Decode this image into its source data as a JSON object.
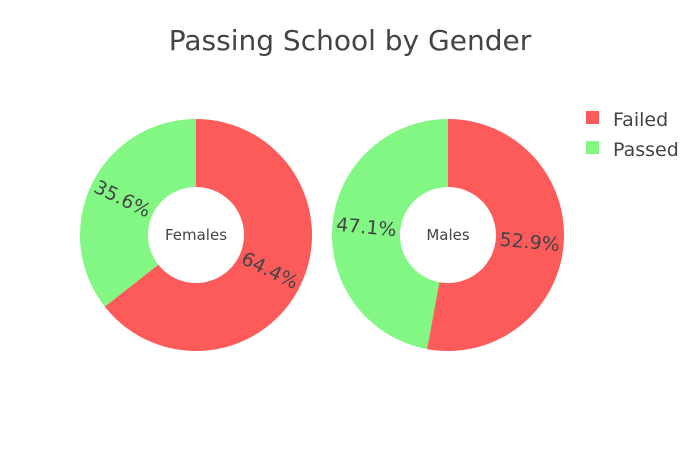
{
  "chart_data": {
    "type": "pie",
    "variant": "donut",
    "title": "Passing School by Gender",
    "legend": {
      "placement": "top-right",
      "entries": [
        {
          "name": "Failed",
          "color": "#fd5a5a"
        },
        {
          "name": "Passed",
          "color": "#83f783"
        }
      ]
    },
    "categories": [
      "Failed",
      "Passed"
    ],
    "pies": [
      {
        "name": "Females",
        "values": [
          64.4,
          35.6
        ],
        "labels": [
          "64.4%",
          "35.6%"
        ]
      },
      {
        "name": "Males",
        "values": [
          52.9,
          47.1
        ],
        "labels": [
          "52.9%",
          "47.1%"
        ]
      }
    ]
  }
}
